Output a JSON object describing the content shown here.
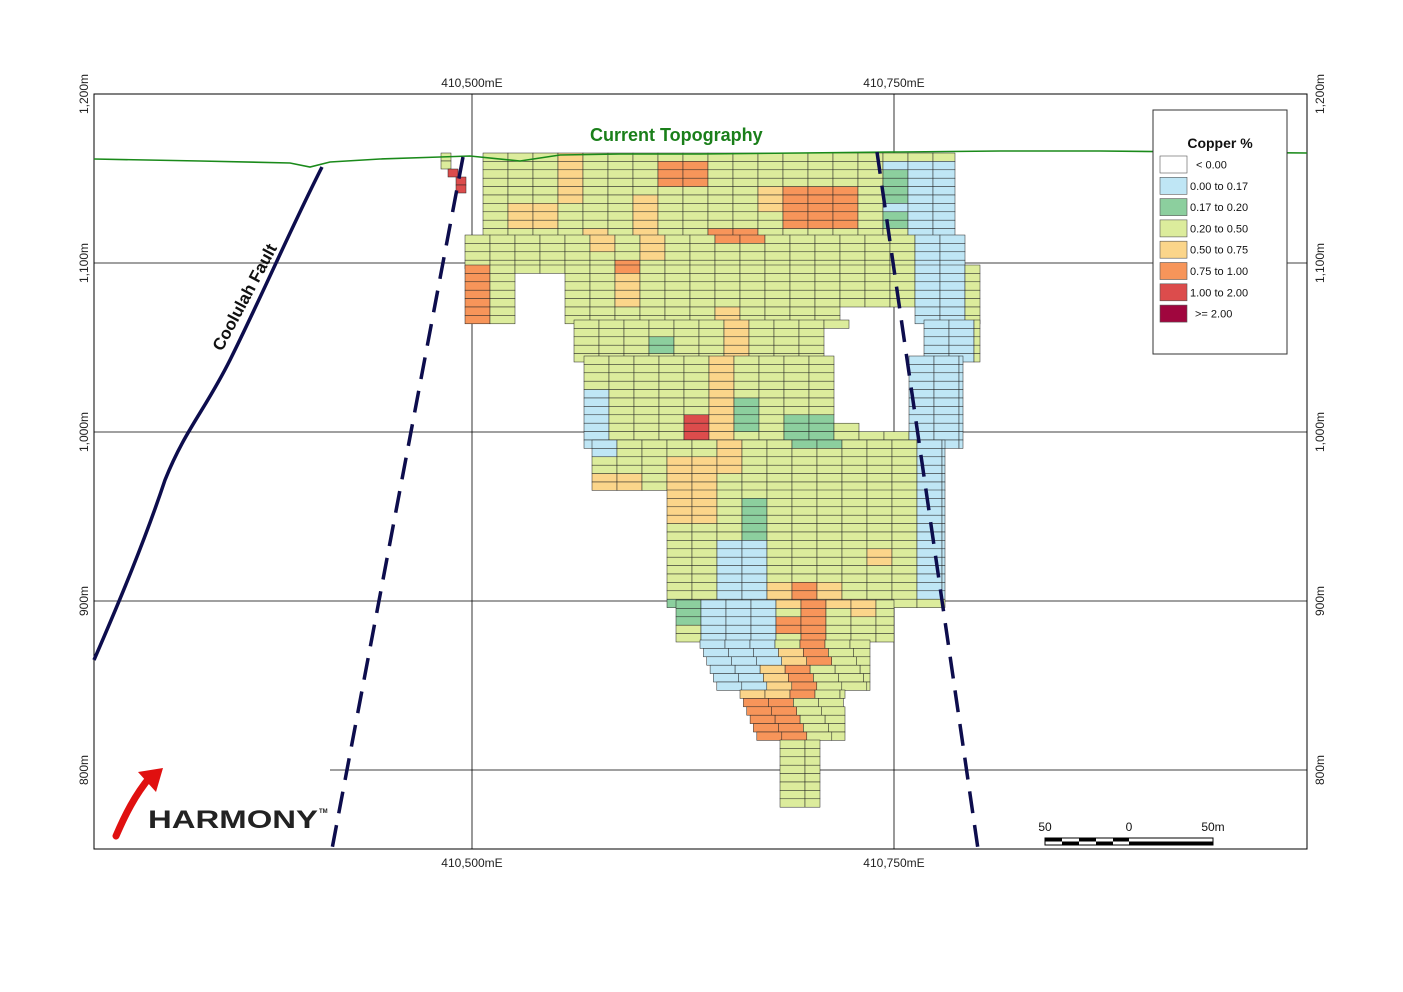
{
  "map": {
    "easting_labels": [
      "410,500mE",
      "410,750mE"
    ],
    "elevation_labels": [
      "1,200m",
      "1,100m",
      "1,000m",
      "900m",
      "800m"
    ],
    "topography_label": "Current Topography",
    "fault_label": "Coolulah Fault"
  },
  "legend": {
    "title": "Copper %",
    "items": [
      {
        "label": "< 0.00",
        "color": "#ffffff"
      },
      {
        "label": "0.00 to 0.17",
        "color": "#bfe6f5"
      },
      {
        "label": "0.17 to 0.20",
        "color": "#8ccf9e"
      },
      {
        "label": "0.20 to 0.50",
        "color": "#dcec9c"
      },
      {
        "label": "0.50 to 0.75",
        "color": "#fbd58a"
      },
      {
        "label": "0.75 to 1.00",
        "color": "#f7955a"
      },
      {
        "label": "1.00 to 2.00",
        "color": "#dc4c4c"
      },
      {
        "label": ">= 2.00",
        "color": "#a0063e"
      }
    ]
  },
  "scale_bar": {
    "labels": [
      "50",
      "0",
      "50m"
    ]
  },
  "logo": {
    "text": "HARMONY",
    "trademark": "TM"
  },
  "colors": {
    "topography": "#1a8a1a",
    "fault": "#0d0d4d",
    "dashed_fault": "#0d0d4d",
    "grid": "#000000",
    "logo_arrow": "#e01010"
  }
}
